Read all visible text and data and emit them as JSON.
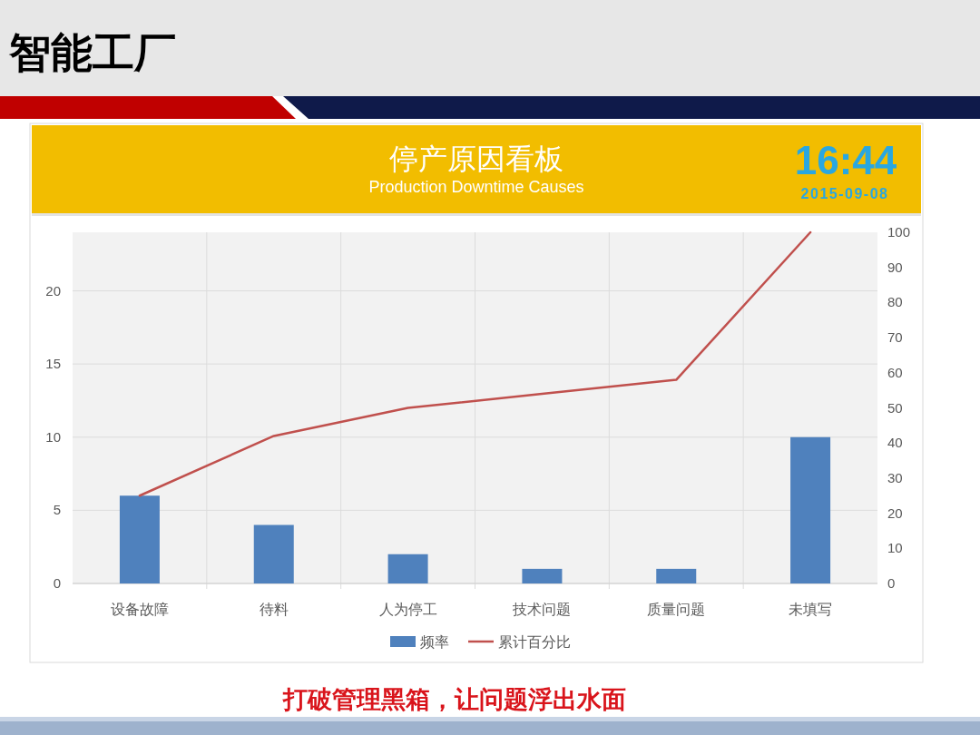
{
  "chart_data": {
    "type": "bar",
    "title": "停产原因看板",
    "subtitle": "Production Downtime Causes",
    "annotations": [
      "智能工厂",
      "16:44",
      "2015-09-08",
      "打破管理黑箱，让问题浮出水面"
    ],
    "categories": [
      "设备故障",
      "待料",
      "人为停工",
      "技术问题",
      "质量问题",
      "未填写"
    ],
    "series": [
      {
        "name": "频率",
        "color": "#4f81bd",
        "values": [
          6,
          4,
          2,
          1,
          1,
          10
        ]
      },
      {
        "name": "累计百分比",
        "type": "line",
        "axis": "y2",
        "color": "#c0504d",
        "values": [
          25,
          42,
          50,
          54,
          58,
          100
        ]
      }
    ],
    "ylim": [
      0,
      24
    ],
    "yticks": [
      0,
      5,
      10,
      15,
      20
    ],
    "y2lim": [
      0,
      100
    ],
    "y2ticks": [
      0,
      10,
      20,
      30,
      40,
      50,
      60,
      70,
      80,
      90,
      100
    ],
    "grid": true,
    "legend": "bottom",
    "marker": "none",
    "line_style": "solid"
  }
}
